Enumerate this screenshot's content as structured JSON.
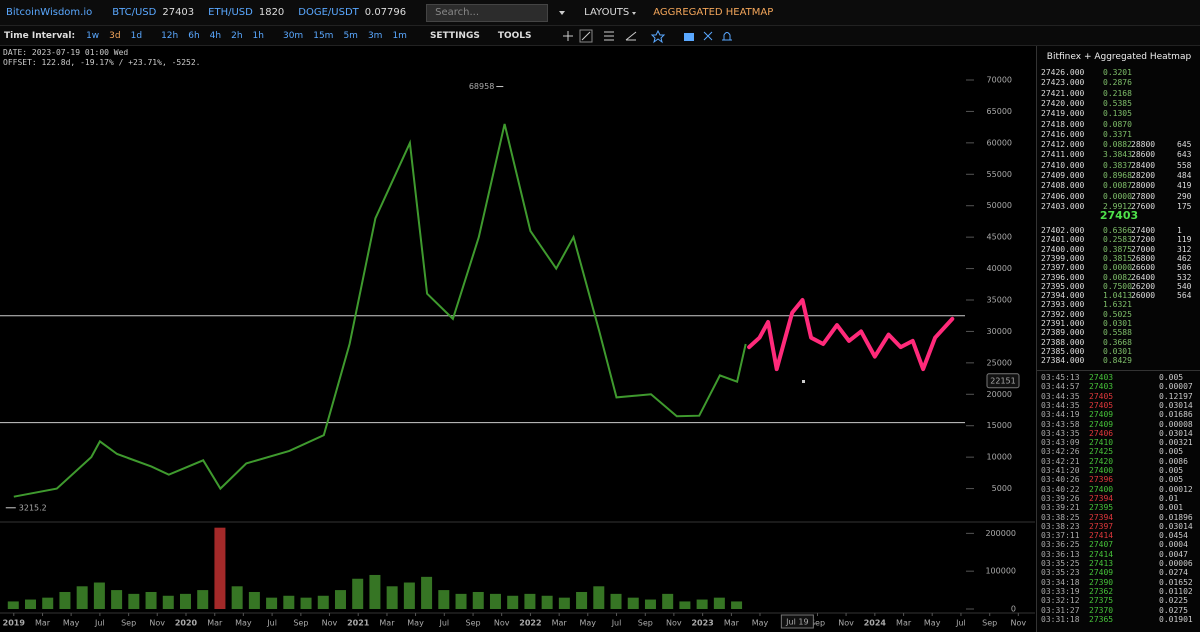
{
  "header": {
    "brand": "BitcoinWisdom.io",
    "tickers": [
      {
        "pair": "BTC/USD",
        "price": "27403"
      },
      {
        "pair": "ETH/USD",
        "price": "1820"
      },
      {
        "pair": "DOGE/USDT",
        "price": "0.07796"
      }
    ],
    "search_placeholder": "Search...",
    "menu": [
      "LAYOUTS",
      "AGGREGATED HEATMAP"
    ]
  },
  "toolbar": {
    "label": "Time Interval:",
    "intervals": [
      "1w",
      "3d",
      "1d",
      "12h",
      "6h",
      "4h",
      "2h",
      "1h",
      "30m",
      "15m",
      "5m",
      "3m",
      "1m"
    ],
    "active": "3d",
    "menus": [
      "SETTINGS",
      "TOOLS"
    ]
  },
  "info": {
    "date": "DATE: 2023-07-19 01:00 Wed",
    "offset": "OFFSET: 122.8d, -19.17% / +23.71%, -5252."
  },
  "chart_data": {
    "type": "line",
    "color": "#3f9a2e",
    "x": [
      2019.0,
      2019.25,
      2019.45,
      2019.5,
      2019.6,
      2019.8,
      2019.9,
      2020.1,
      2020.2,
      2020.35,
      2020.6,
      2020.8,
      2020.95,
      2021.1,
      2021.3,
      2021.4,
      2021.55,
      2021.7,
      2021.85,
      2022.0,
      2022.15,
      2022.25,
      2022.4,
      2022.5,
      2022.7,
      2022.85,
      2022.98,
      2023.1,
      2023.2,
      2023.25
    ],
    "values": [
      3700,
      5000,
      10000,
      12500,
      10500,
      8500,
      7200,
      9500,
      5000,
      9000,
      11000,
      13500,
      28000,
      48000,
      60000,
      36000,
      32000,
      45000,
      63000,
      46000,
      40000,
      45000,
      30000,
      19500,
      20000,
      16500,
      16600,
      23000,
      22000,
      28000
    ],
    "xlim": [
      2018.92,
      2024.93
    ],
    "xticks": [
      {
        "value": 2019.0,
        "label": "2019"
      },
      {
        "value": 2019.167,
        "label": "Mar"
      },
      {
        "value": 2019.333,
        "label": "May"
      },
      {
        "value": 2019.5,
        "label": "Jul"
      },
      {
        "value": 2019.667,
        "label": "Sep"
      },
      {
        "value": 2019.833,
        "label": "Nov"
      },
      {
        "value": 2020.0,
        "label": "2020"
      },
      {
        "value": 2020.167,
        "label": "Mar"
      },
      {
        "value": 2020.333,
        "label": "May"
      },
      {
        "value": 2020.5,
        "label": "Jul"
      },
      {
        "value": 2020.667,
        "label": "Sep"
      },
      {
        "value": 2020.833,
        "label": "Nov"
      },
      {
        "value": 2021.0,
        "label": "2021"
      },
      {
        "value": 2021.167,
        "label": "Mar"
      },
      {
        "value": 2021.333,
        "label": "May"
      },
      {
        "value": 2021.5,
        "label": "Jul"
      },
      {
        "value": 2021.667,
        "label": "Sep"
      },
      {
        "value": 2021.833,
        "label": "Nov"
      },
      {
        "value": 2022.0,
        "label": "2022"
      },
      {
        "value": 2022.167,
        "label": "Mar"
      },
      {
        "value": 2022.333,
        "label": "May"
      },
      {
        "value": 2022.5,
        "label": "Jul"
      },
      {
        "value": 2022.667,
        "label": "Sep"
      },
      {
        "value": 2022.833,
        "label": "Nov"
      },
      {
        "value": 2023.0,
        "label": "2023"
      },
      {
        "value": 2023.167,
        "label": "Mar"
      },
      {
        "value": 2023.333,
        "label": "May"
      },
      {
        "value": 2023.667,
        "label": "Sep"
      },
      {
        "value": 2023.833,
        "label": "Nov"
      },
      {
        "value": 2024.0,
        "label": "2024"
      },
      {
        "value": 2024.167,
        "label": "Mar"
      },
      {
        "value": 2024.333,
        "label": "May"
      },
      {
        "value": 2024.5,
        "label": "Jul"
      },
      {
        "value": 2024.667,
        "label": "Sep"
      },
      {
        "value": 2024.833,
        "label": "Nov"
      }
    ],
    "ylim": [
      0,
      73500
    ],
    "yticks": [
      5000,
      10000,
      15000,
      20000,
      25000,
      30000,
      35000,
      40000,
      45000,
      50000,
      55000,
      60000,
      65000,
      70000
    ],
    "hlines": [
      32500,
      15500
    ],
    "high": {
      "x": 2021.86,
      "value": 68958
    },
    "low": {
      "x": 2019.0,
      "value": 3215.2
    },
    "crosshair": {
      "x": 2023.55,
      "x_label": "Jul 19",
      "price": 22151
    },
    "projection": {
      "color": "#ff2a7a",
      "x": [
        2023.27,
        2023.33,
        2023.38,
        2023.43,
        2023.48,
        2023.52,
        2023.58,
        2023.63,
        2023.7,
        2023.78,
        2023.85,
        2023.92,
        2024.0,
        2024.08,
        2024.15,
        2024.22,
        2024.28,
        2024.35,
        2024.45
      ],
      "values": [
        27500,
        29000,
        31500,
        24000,
        29000,
        33000,
        35000,
        29000,
        28000,
        31000,
        28500,
        30000,
        26000,
        29500,
        27500,
        28500,
        24000,
        29000,
        32000
      ]
    },
    "volume": {
      "color": "#3f8a2a",
      "spike_color": "#c03030",
      "ylim": [
        0,
        230000
      ],
      "yticks": [
        0,
        100000,
        200000
      ],
      "x": [
        2019.0,
        2019.1,
        2019.2,
        2019.3,
        2019.4,
        2019.5,
        2019.6,
        2019.7,
        2019.8,
        2019.9,
        2020.0,
        2020.1,
        2020.2,
        2020.3,
        2020.4,
        2020.5,
        2020.6,
        2020.7,
        2020.8,
        2020.9,
        2021.0,
        2021.1,
        2021.2,
        2021.3,
        2021.4,
        2021.5,
        2021.6,
        2021.7,
        2021.8,
        2021.9,
        2022.0,
        2022.1,
        2022.2,
        2022.3,
        2022.4,
        2022.5,
        2022.6,
        2022.7,
        2022.8,
        2022.9,
        2023.0,
        2023.1,
        2023.2
      ],
      "values": [
        20000,
        25000,
        30000,
        45000,
        60000,
        70000,
        50000,
        40000,
        45000,
        35000,
        40000,
        50000,
        215000,
        60000,
        45000,
        30000,
        35000,
        30000,
        35000,
        50000,
        80000,
        90000,
        60000,
        70000,
        85000,
        50000,
        40000,
        45000,
        40000,
        35000,
        40000,
        35000,
        30000,
        45000,
        60000,
        40000,
        30000,
        25000,
        40000,
        20000,
        25000,
        30000,
        20000
      ]
    }
  },
  "orderbook": {
    "title": "Bitfinex + Aggregated Heatmap",
    "mid": "27403",
    "upper": [
      [
        "27426.000",
        "0.3201"
      ],
      [
        "27423.000",
        "0.2876"
      ],
      [
        "27421.000",
        "0.2168"
      ],
      [
        "27420.000",
        "0.5385"
      ],
      [
        "27419.000",
        "0.1305"
      ],
      [
        "27418.000",
        "0.0870"
      ],
      [
        "27416.000",
        "0.3371"
      ],
      [
        "27412.000",
        "0.0882",
        "28800",
        "645"
      ],
      [
        "27411.000",
        "3.3843",
        "28600",
        "643"
      ],
      [
        "27410.000",
        "0.3837",
        "28400",
        "558"
      ],
      [
        "27409.000",
        "0.8968",
        "28200",
        "484"
      ],
      [
        "27408.000",
        "0.0087",
        "28000",
        "419"
      ],
      [
        "27406.000",
        "0.0000",
        "27800",
        "290"
      ],
      [
        "27403.000",
        "2.9912",
        "27600",
        "175"
      ]
    ],
    "lower": [
      [
        "27402.000",
        "0.6366",
        "27400",
        "1"
      ],
      [
        "27401.000",
        "0.2583",
        "27200",
        "119"
      ],
      [
        "27400.000",
        "0.3875",
        "27000",
        "312"
      ],
      [
        "27399.000",
        "0.3815",
        "26800",
        "462"
      ],
      [
        "27397.000",
        "0.0000",
        "26600",
        "506"
      ],
      [
        "27396.000",
        "0.0082",
        "26400",
        "532"
      ],
      [
        "27395.000",
        "0.7500",
        "26200",
        "540"
      ],
      [
        "27394.000",
        "1.0413",
        "26000",
        "564"
      ],
      [
        "27393.000",
        "1.6321"
      ],
      [
        "27392.000",
        "0.5025"
      ],
      [
        "27391.000",
        "0.0301"
      ],
      [
        "27389.000",
        "0.5588"
      ],
      [
        "27388.000",
        "0.3668"
      ],
      [
        "27385.000",
        "0.0301"
      ],
      [
        "27384.000",
        "0.8429"
      ]
    ]
  },
  "trades": {
    "up_color": "#46c23a",
    "down_color": "#e0383c",
    "rows": [
      {
        "time": "03:45:13",
        "price": "27403",
        "amount": "0.005",
        "up": true
      },
      {
        "time": "03:44:57",
        "price": "27403",
        "amount": "0.00007",
        "up": true
      },
      {
        "time": "03:44:35",
        "price": "27405",
        "amount": "0.12197",
        "up": false
      },
      {
        "time": "03:44:35",
        "price": "27405",
        "amount": "0.03014",
        "up": false
      },
      {
        "time": "03:44:19",
        "price": "27409",
        "amount": "0.01686",
        "up": true
      },
      {
        "time": "03:43:58",
        "price": "27409",
        "amount": "0.00008",
        "up": true
      },
      {
        "time": "03:43:35",
        "price": "27406",
        "amount": "0.03014",
        "up": false
      },
      {
        "time": "03:43:09",
        "price": "27410",
        "amount": "0.00321",
        "up": true
      },
      {
        "time": "03:42:26",
        "price": "27425",
        "amount": "0.005",
        "up": true
      },
      {
        "time": "03:42:21",
        "price": "27420",
        "amount": "0.0086",
        "up": true
      },
      {
        "time": "03:41:20",
        "price": "27400",
        "amount": "0.005",
        "up": true
      },
      {
        "time": "03:40:26",
        "price": "27396",
        "amount": "0.005",
        "up": false
      },
      {
        "time": "03:40:22",
        "price": "27400",
        "amount": "0.00012",
        "up": true
      },
      {
        "time": "03:39:26",
        "price": "27394",
        "amount": "0.01",
        "up": false
      },
      {
        "time": "03:39:21",
        "price": "27395",
        "amount": "0.001",
        "up": true
      },
      {
        "time": "03:38:25",
        "price": "27394",
        "amount": "0.01896",
        "up": false
      },
      {
        "time": "03:38:23",
        "price": "27397",
        "amount": "0.03014",
        "up": false
      },
      {
        "time": "03:37:11",
        "price": "27414",
        "amount": "0.0454",
        "up": false
      },
      {
        "time": "03:36:25",
        "price": "27407",
        "amount": "0.0004",
        "up": true
      },
      {
        "time": "03:36:13",
        "price": "27414",
        "amount": "0.0047",
        "up": true
      },
      {
        "time": "03:35:25",
        "price": "27413",
        "amount": "0.00006",
        "up": true
      },
      {
        "time": "03:35:23",
        "price": "27409",
        "amount": "0.0274",
        "up": true
      },
      {
        "time": "03:34:18",
        "price": "27390",
        "amount": "0.01652",
        "up": true
      },
      {
        "time": "03:33:19",
        "price": "27362",
        "amount": "0.01102",
        "up": true
      },
      {
        "time": "03:32:12",
        "price": "27375",
        "amount": "0.0225",
        "up": true
      },
      {
        "time": "03:31:27",
        "price": "27370",
        "amount": "0.0275",
        "up": true
      },
      {
        "time": "03:31:18",
        "price": "27365",
        "amount": "0.01901",
        "up": true
      }
    ]
  }
}
